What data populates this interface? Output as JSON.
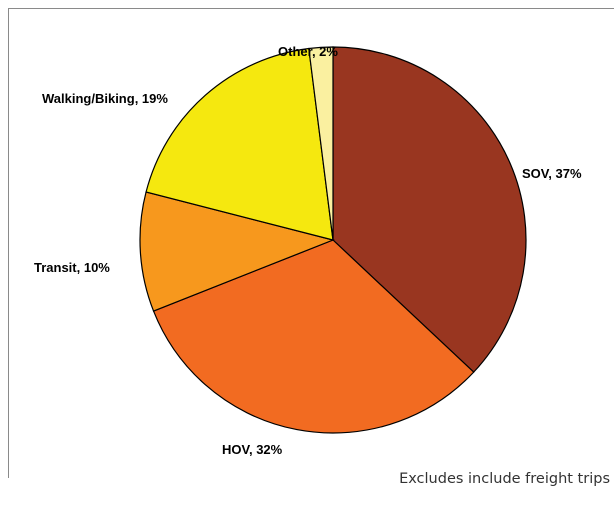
{
  "chart_data": {
    "type": "pie",
    "categories": [
      "SOV",
      "HOV",
      "Transit",
      "Walking/Biking",
      "Other"
    ],
    "values": [
      37,
      32,
      10,
      19,
      2
    ],
    "labels": [
      "SOV, 37%",
      "HOV, 32%",
      "Transit, 10%",
      "Walking/Biking, 19%",
      "Other, 2%"
    ],
    "colors": [
      "#993620",
      "#f26b21",
      "#f7981d",
      "#f5e80f",
      "#faf0a0"
    ],
    "start": "12 o'clock",
    "direction": "clockwise",
    "legend": "none"
  },
  "footnote": "Excludes include freight trips"
}
